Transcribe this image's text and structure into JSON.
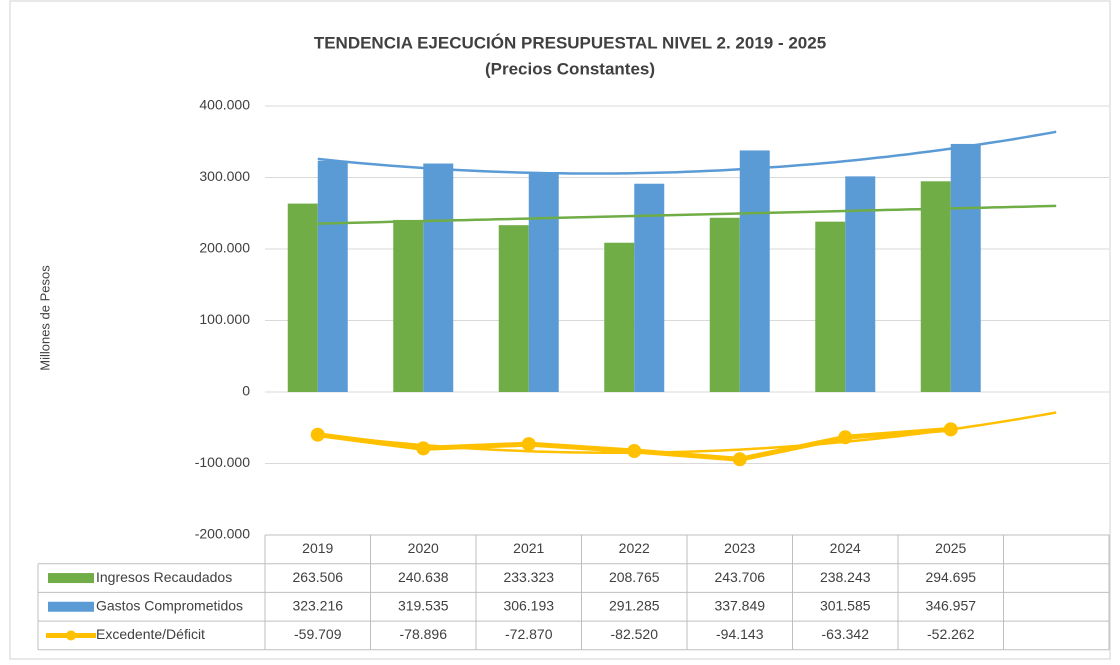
{
  "chart_data": {
    "type": "bar",
    "title": "TENDENCIA EJECUCIÓN PRESUPUESTAL NIVEL 2. 2019 - 2025",
    "subtitle": "(Precios Constantes)",
    "y_axis_label": "Millones de Pesos",
    "categories": [
      "2019",
      "2020",
      "2021",
      "2022",
      "2023",
      "2024",
      "2025",
      null
    ],
    "series": [
      {
        "name": "Ingresos Recaudados",
        "color": "#70ad47",
        "mark": "bar",
        "trendline": "linear",
        "values": [
          263506,
          240638,
          233323,
          208765,
          243706,
          238243,
          294695,
          null
        ],
        "value_labels": [
          "263.506",
          "240.638",
          "233.323",
          "208.765",
          "243.706",
          "238.243",
          "294.695",
          null
        ]
      },
      {
        "name": "Gastos Comprometidos",
        "color": "#5b9bd5",
        "mark": "bar",
        "trendline": "poly2",
        "values": [
          323216,
          319535,
          306193,
          291285,
          337849,
          301585,
          346957,
          null
        ],
        "value_labels": [
          "323.216",
          "319.535",
          "306.193",
          "291.285",
          "337.849",
          "301.585",
          "346.957",
          null
        ]
      },
      {
        "name": "Excedente/Déficit",
        "color": "#ffc000",
        "mark": "line",
        "trendline": "poly2",
        "values": [
          -59709,
          -78896,
          -72870,
          -82520,
          -94143,
          -63342,
          -52262,
          null
        ],
        "value_labels": [
          "-59.709",
          "-78.896",
          "-72.870",
          "-82.520",
          "-94.143",
          "-63.342",
          "-52.262",
          null
        ]
      }
    ],
    "ylim": [
      -200000,
      400000
    ],
    "yticks": [
      {
        "value": -200000,
        "label": "-200.000"
      },
      {
        "value": -100000,
        "label": "-100.000"
      },
      0,
      {
        "value": 100000,
        "label": "100.000"
      },
      {
        "value": 200000,
        "label": "200.000"
      },
      {
        "value": 300000,
        "label": "300.000"
      },
      {
        "value": 400000,
        "label": "400.000"
      }
    ],
    "grid": true,
    "data_table": true
  }
}
